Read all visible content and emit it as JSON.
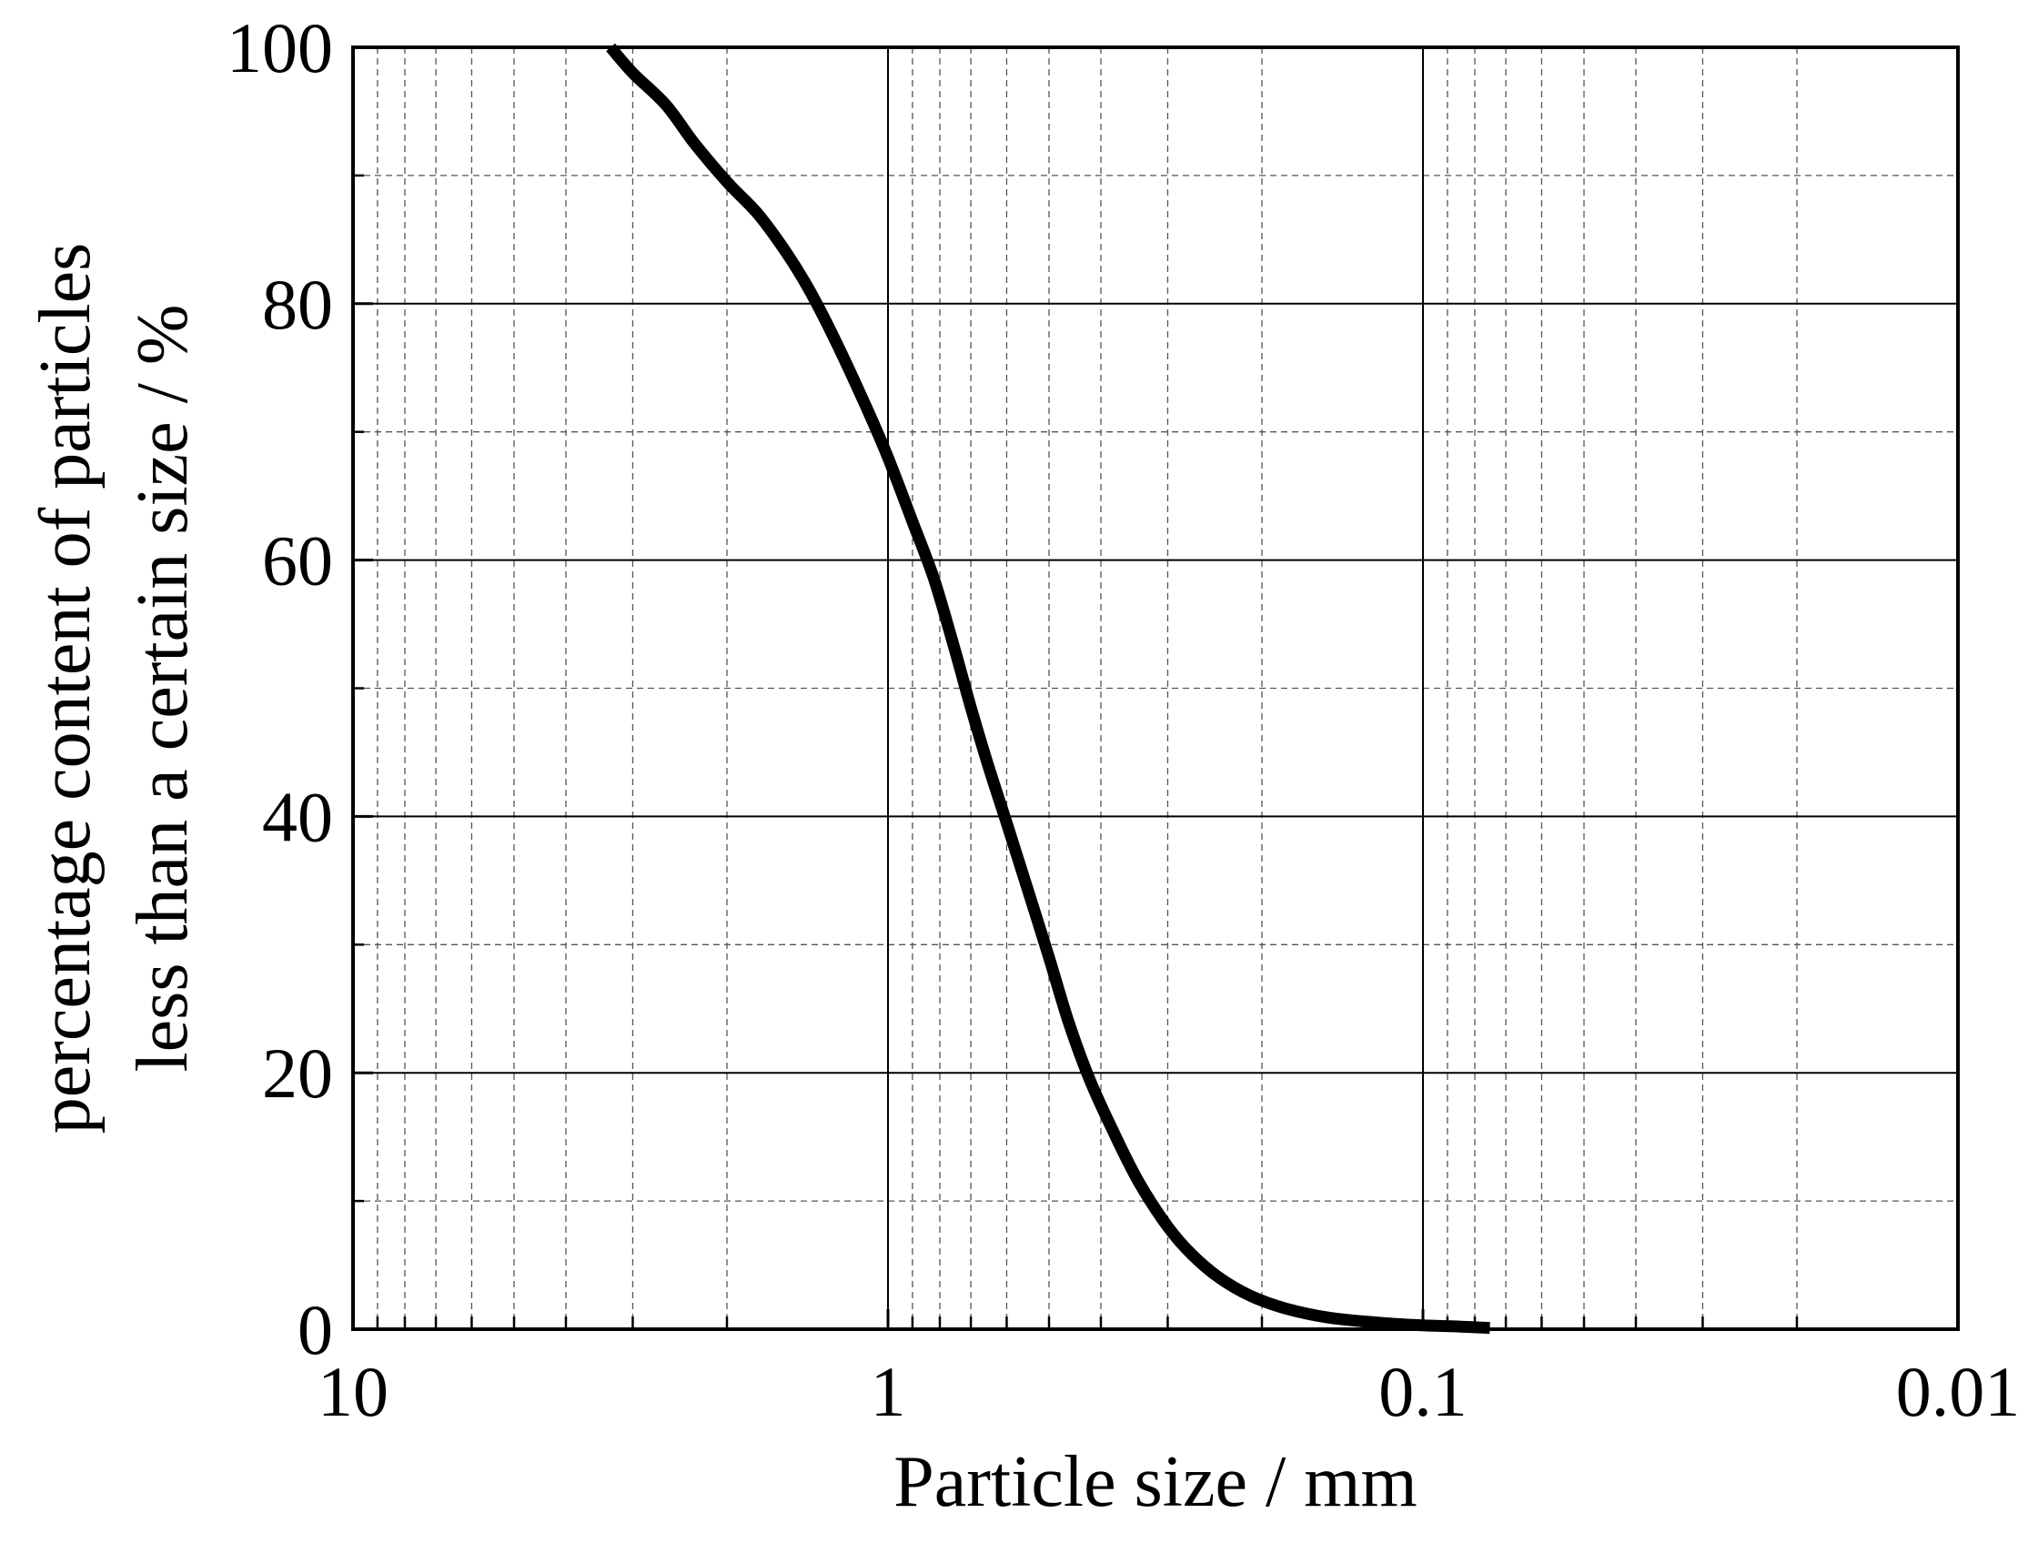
{
  "chart_data": {
    "type": "line",
    "title": "",
    "xlabel": "Particle size / mm",
    "ylabel_lines": [
      "percentage content of particles",
      "less than a certain size / %"
    ],
    "x_scale": "log",
    "x_reversed": true,
    "xlim": [
      10,
      0.01
    ],
    "ylim": [
      0,
      100
    ],
    "x_ticks": [
      {
        "value": 10,
        "label": "10"
      },
      {
        "value": 1,
        "label": "1"
      },
      {
        "value": 0.1,
        "label": "0.1"
      },
      {
        "value": 0.01,
        "label": "0.01"
      }
    ],
    "y_ticks": [
      {
        "value": 0,
        "label": "0"
      },
      {
        "value": 20,
        "label": "20"
      },
      {
        "value": 40,
        "label": "40"
      },
      {
        "value": 60,
        "label": "60"
      },
      {
        "value": 80,
        "label": "80"
      },
      {
        "value": 100,
        "label": "100"
      }
    ],
    "grid": true,
    "legend": "none",
    "series": [
      {
        "color": "#000000",
        "x": [
          3.3,
          3.0,
          2.6,
          2.3,
          2.0,
          1.75,
          1.55,
          1.4,
          1.25,
          1.1,
          1.0,
          0.9,
          0.82,
          0.75,
          0.7,
          0.65,
          0.6,
          0.55,
          0.5,
          0.46,
          0.42,
          0.38,
          0.34,
          0.3,
          0.27,
          0.24,
          0.21,
          0.18,
          0.15,
          0.12,
          0.1,
          0.085,
          0.075
        ],
        "y": [
          100,
          98,
          95.5,
          92.5,
          89.5,
          87,
          84,
          81,
          77,
          72,
          68,
          63,
          58.5,
          53,
          48.5,
          44,
          39.5,
          34.5,
          29,
          24,
          19.5,
          15.5,
          11.5,
          8,
          5.8,
          4,
          2.6,
          1.6,
          0.9,
          0.5,
          0.3,
          0.2,
          0.1
        ]
      }
    ]
  }
}
